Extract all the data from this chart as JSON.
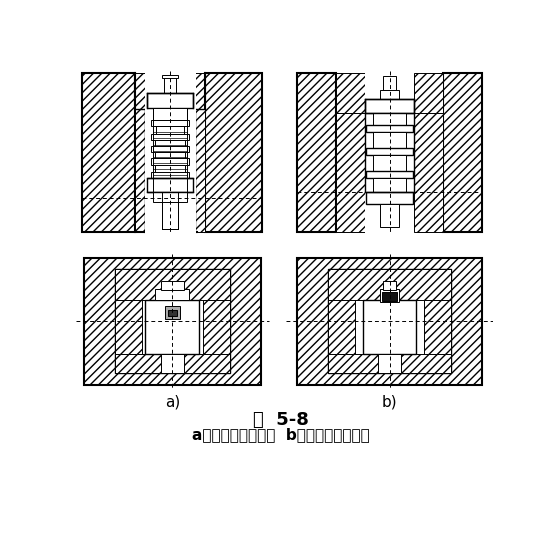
{
  "title": "图  5-8",
  "caption": "a）暗槽，不易加工  b）明槽，加工简便",
  "label_a": "a)",
  "label_b": "b)",
  "bg_color": "#ffffff",
  "lc": "#000000",
  "title_fontsize": 13,
  "caption_fontsize": 11,
  "label_fontsize": 11
}
